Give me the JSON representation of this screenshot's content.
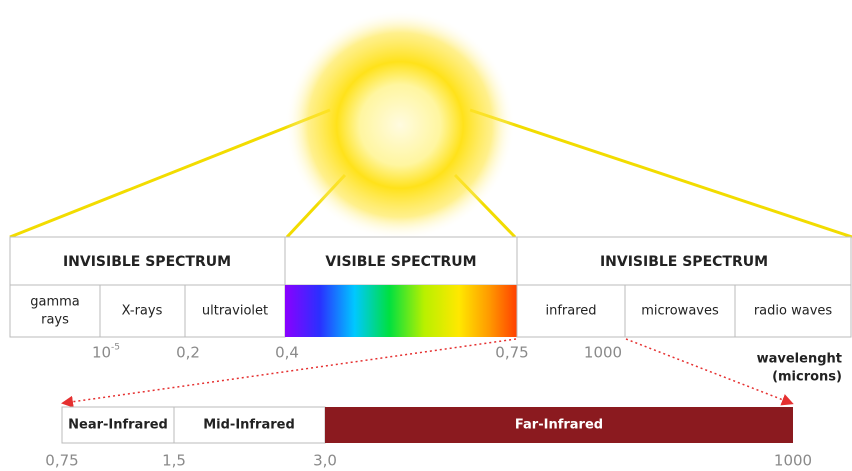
{
  "header": {
    "left": "INVISIBLE SPECTRUM",
    "middle": "VISIBLE SPECTRUM",
    "right": "INVISIBLE SPECTRUM"
  },
  "bands": {
    "gamma": [
      "gamma",
      "rays"
    ],
    "xrays": "X-rays",
    "ultraviolet": "ultraviolet",
    "infrared": "infrared",
    "microwaves": "microwaves",
    "radio": "radio waves"
  },
  "wavelengths": {
    "base": "10",
    "exponent": "-5",
    "a": "0,2",
    "b": "0,4",
    "c": "0,75",
    "d": "1000"
  },
  "unit": [
    "wavelenght",
    "(microns)"
  ],
  "infrared_bar": {
    "near": "Near-Infrared",
    "mid": "Mid-Infrared",
    "far": "Far-Infrared"
  },
  "infrared_scale": [
    "0,75",
    "1,5",
    "3,0",
    "1000"
  ]
}
